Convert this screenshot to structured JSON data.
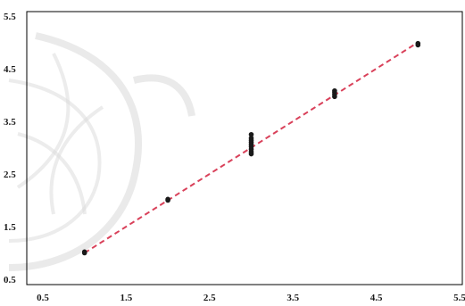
{
  "chart_data": {
    "type": "scatter",
    "title": "",
    "xlabel": "",
    "ylabel": "",
    "xlim": [
      0.5,
      5.5
    ],
    "ylim": [
      0.5,
      5.5
    ],
    "x_ticks": [
      "0.5",
      "1.5",
      "2.5",
      "3.5",
      "4.5",
      "5.5"
    ],
    "y_ticks": [
      "5.5",
      "4.5",
      "3.5",
      "2.5",
      "1.5",
      "0.5"
    ],
    "grid": false,
    "series": [
      {
        "points": [
          {
            "x": 1,
            "y": 1.0
          },
          {
            "x": 1,
            "y": 1.02
          },
          {
            "x": 2,
            "y": 2.0
          },
          {
            "x": 2,
            "y": 2.02
          },
          {
            "x": 3,
            "y": 2.88
          },
          {
            "x": 3,
            "y": 2.92
          },
          {
            "x": 3,
            "y": 2.97
          },
          {
            "x": 3,
            "y": 3.02
          },
          {
            "x": 3,
            "y": 3.06
          },
          {
            "x": 3,
            "y": 3.1
          },
          {
            "x": 3,
            "y": 3.14
          },
          {
            "x": 3,
            "y": 3.18
          },
          {
            "x": 3,
            "y": 3.25
          },
          {
            "x": 4,
            "y": 3.97
          },
          {
            "x": 4,
            "y": 4.01
          },
          {
            "x": 4,
            "y": 4.05
          },
          {
            "x": 4,
            "y": 4.08
          },
          {
            "x": 5,
            "y": 4.95
          },
          {
            "x": 5,
            "y": 4.98
          }
        ],
        "marker_color": "#1a1a1a"
      }
    ],
    "fit_line": {
      "from": {
        "x": 1,
        "y": 1.0
      },
      "to": {
        "x": 5,
        "y": 5.0
      },
      "color": "#d9415a",
      "style": "dashed"
    }
  }
}
